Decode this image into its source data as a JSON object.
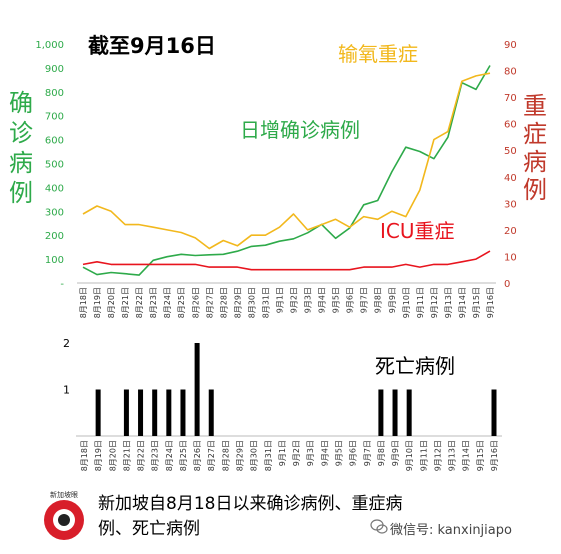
{
  "title": "截至9月16日",
  "caption": "新加坡自8月18日以来确诊病例、重症病例、死亡病例",
  "watermark": "微信号: kanxinjiapo",
  "logo_text": "新加坡眼",
  "colors": {
    "daily": "#2eaa4a",
    "severe": "#f2b81d",
    "icu": "#e8141e",
    "deaths": "#000000",
    "left_axis": "#2eaa4a",
    "right_axis": "#c0392b"
  },
  "chart_data": [
    {
      "type": "line",
      "x": [
        "8月18日",
        "8月19日",
        "8月20日",
        "8月21日",
        "8月22日",
        "8月23日",
        "8月24日",
        "8月25日",
        "8月26日",
        "8月27日",
        "8月28日",
        "8月29日",
        "8月30日",
        "8月31日",
        "9月1日",
        "9月2日",
        "9月3日",
        "9月4日",
        "9月5日",
        "9月6日",
        "9月7日",
        "9月8日",
        "9月9日",
        "9月10日",
        "9月11日",
        "9月12日",
        "9月13日",
        "9月14日",
        "9月15日",
        "9月16日"
      ],
      "ylabel_left": "确诊病例",
      "ylabel_right": "重症病例",
      "ylim_left": [
        0,
        1000
      ],
      "yticks_left": [
        "-",
        "100",
        "200",
        "300",
        "400",
        "500",
        "600",
        "700",
        "800",
        "900",
        "1,000"
      ],
      "ylim_right": [
        0,
        90
      ],
      "yticks_right": [
        "0",
        "10",
        "20",
        "30",
        "40",
        "50",
        "60",
        "70",
        "80",
        "90"
      ],
      "grid": false,
      "series": [
        {
          "name": "日增确诊病例",
          "axis": "left",
          "values": [
            66,
            35,
            44,
            39,
            33,
            95,
            110,
            120,
            115,
            118,
            120,
            133,
            153,
            158,
            175,
            185,
            210,
            245,
            187,
            230,
            327,
            345,
            465,
            568,
            550,
            520,
            610,
            838,
            810,
            910
          ]
        },
        {
          "name": "输氧重症",
          "axis": "right",
          "values": [
            26,
            29,
            27,
            22,
            22,
            21,
            20,
            19,
            17,
            13,
            16,
            14,
            18,
            18,
            21,
            26,
            20,
            22,
            24,
            21,
            25,
            24,
            27,
            25,
            35,
            54,
            57,
            76,
            78,
            79
          ]
        },
        {
          "name": "ICU重症",
          "axis": "right",
          "values": [
            7,
            8,
            7,
            7,
            7,
            7,
            7,
            7,
            7,
            6,
            6,
            6,
            5,
            5,
            5,
            5,
            5,
            5,
            5,
            5,
            6,
            6,
            6,
            7,
            6,
            7,
            7,
            8,
            9,
            12
          ]
        }
      ]
    },
    {
      "type": "bar",
      "x": [
        "8月18日",
        "8月19日",
        "8月20日",
        "8月21日",
        "8月22日",
        "8月23日",
        "8月24日",
        "8月25日",
        "8月26日",
        "8月27日",
        "8月28日",
        "8月29日",
        "8月30日",
        "8月31日",
        "9月1日",
        "9月2日",
        "9月3日",
        "9月4日",
        "9月5日",
        "9月6日",
        "9月7日",
        "9月8日",
        "9月9日",
        "9月10日",
        "9月11日",
        "9月12日",
        "9月13日",
        "9月14日",
        "9月15日",
        "9月16日"
      ],
      "ylim": [
        0,
        2
      ],
      "yticks": [
        "1",
        "2"
      ],
      "series": [
        {
          "name": "死亡病例",
          "values": [
            0,
            1,
            0,
            1,
            1,
            1,
            1,
            1,
            2,
            1,
            0,
            0,
            0,
            0,
            0,
            0,
            0,
            0,
            0,
            0,
            0,
            1,
            1,
            1,
            0,
            0,
            0,
            0,
            0,
            1
          ]
        }
      ]
    }
  ]
}
